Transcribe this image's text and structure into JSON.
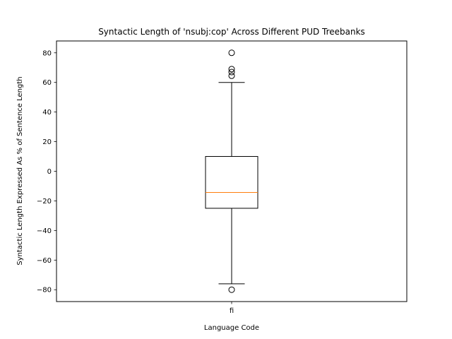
{
  "chart_data": {
    "type": "box",
    "title": "Syntactic Length of 'nsubj:cop' Across Different PUD Treebanks",
    "xlabel": "Language Code",
    "ylabel": "Syntactic Length Expressed As % of Sentence Length",
    "ylim": [
      -88,
      88
    ],
    "yticks": [
      -80,
      -60,
      -40,
      -20,
      0,
      20,
      40,
      60,
      80
    ],
    "ytick_labels": [
      "−80",
      "−60",
      "−40",
      "−20",
      "0",
      "20",
      "40",
      "60",
      "80"
    ],
    "categories": [
      "fi"
    ],
    "boxes": [
      {
        "category": "fi",
        "whisker_low": -76,
        "q1": -25,
        "median": -14.3,
        "q3": 10,
        "whisker_high": 60,
        "outliers": [
          80,
          69,
          67,
          64.5,
          -80
        ]
      }
    ],
    "colors": {
      "box": "#000000",
      "median": "#ff7f0e",
      "axes": "#000000"
    },
    "grid": false,
    "legend": "none"
  }
}
